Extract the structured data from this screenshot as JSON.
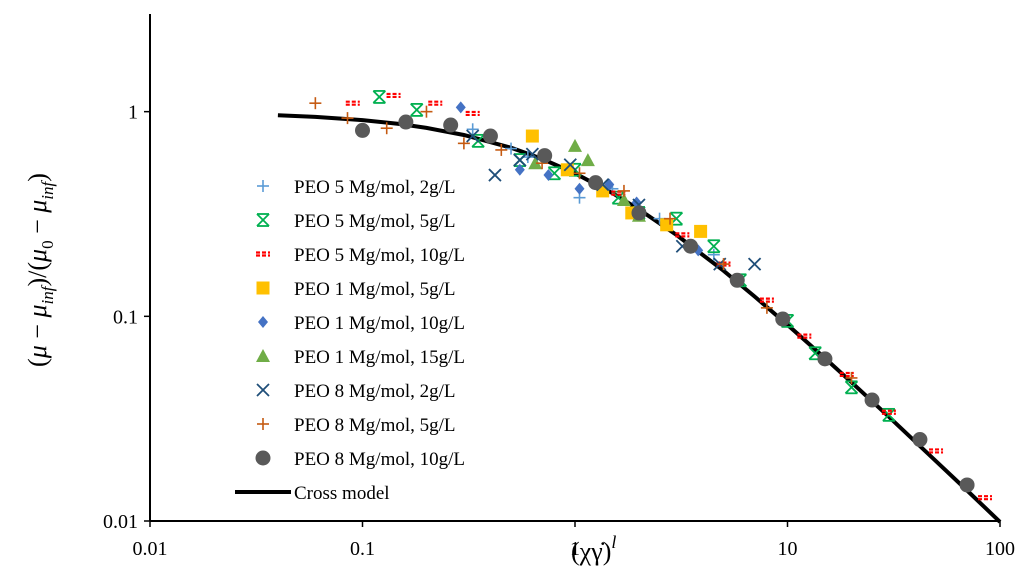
{
  "chart_data": {
    "type": "scatter",
    "title": "",
    "xlabel": "(χγ̇)^l",
    "ylabel": "(μ − μ_inf)/(μ_0 − μ_inf)",
    "x_scale": "log",
    "y_scale": "log",
    "xlim": [
      0.01,
      100
    ],
    "ylim": [
      0.01,
      3
    ],
    "x_ticks": [
      0.01,
      0.1,
      1,
      10,
      100
    ],
    "x_tick_labels": [
      "0.01",
      "0.1",
      "1",
      "10",
      "100"
    ],
    "y_ticks": [
      0.01,
      0.1,
      1
    ],
    "y_tick_labels": [
      "0.01",
      "0.1",
      "1"
    ],
    "grid": false,
    "legend_position": "left",
    "series": [
      {
        "name": "PEO 5 Mg/mol, 2g/L",
        "marker": "plus-icon",
        "color": "#5b9bd5",
        "points": [
          [
            0.33,
            0.82
          ],
          [
            0.5,
            0.66
          ],
          [
            0.6,
            0.6
          ],
          [
            1.05,
            0.38
          ],
          [
            1.5,
            0.42
          ],
          [
            2.5,
            0.3
          ],
          [
            4.5,
            0.2
          ]
        ]
      },
      {
        "name": "PEO 5 Mg/mol, 5g/L",
        "marker": "asterisk-icon",
        "color": "#00b050",
        "points": [
          [
            0.12,
            1.18
          ],
          [
            0.18,
            1.02
          ],
          [
            0.35,
            0.72
          ],
          [
            0.55,
            0.58
          ],
          [
            0.8,
            0.5
          ],
          [
            1.0,
            0.52
          ],
          [
            1.6,
            0.38
          ],
          [
            2.0,
            0.32
          ],
          [
            3.0,
            0.3
          ],
          [
            4.5,
            0.22
          ],
          [
            6.0,
            0.15
          ],
          [
            10.0,
            0.095
          ],
          [
            13.5,
            0.066
          ],
          [
            20.0,
            0.045
          ],
          [
            30.0,
            0.033
          ]
        ]
      },
      {
        "name": "PEO 5 Mg/mol, 10g/L",
        "marker": "dash-icon",
        "color": "#ff0000",
        "points": [
          [
            0.09,
            1.1
          ],
          [
            0.14,
            1.2
          ],
          [
            0.22,
            1.1
          ],
          [
            0.33,
            0.98
          ],
          [
            1.6,
            0.4
          ],
          [
            3.2,
            0.25
          ],
          [
            5.0,
            0.18
          ],
          [
            8.0,
            0.12
          ],
          [
            12.0,
            0.08
          ],
          [
            19.0,
            0.052
          ],
          [
            30.0,
            0.034
          ],
          [
            50.0,
            0.022
          ],
          [
            85.0,
            0.013
          ]
        ]
      },
      {
        "name": "PEO 1 Mg/mol, 5g/L",
        "marker": "square-icon",
        "color": "#ffc000",
        "points": [
          [
            0.63,
            0.76
          ],
          [
            0.92,
            0.52
          ],
          [
            1.35,
            0.41
          ],
          [
            1.85,
            0.32
          ],
          [
            2.7,
            0.28
          ],
          [
            3.9,
            0.26
          ]
        ]
      },
      {
        "name": "PEO 1 Mg/mol, 10g/L",
        "marker": "diamond-icon",
        "color": "#4472c4",
        "points": [
          [
            0.29,
            1.05
          ],
          [
            0.55,
            0.52
          ],
          [
            0.75,
            0.49
          ],
          [
            1.05,
            0.42
          ],
          [
            1.45,
            0.44
          ],
          [
            1.95,
            0.36
          ],
          [
            3.8,
            0.21
          ]
        ]
      },
      {
        "name": "PEO 1 Mg/mol, 15g/L",
        "marker": "triangle-icon",
        "color": "#70ad47",
        "points": [
          [
            0.65,
            0.56
          ],
          [
            1.0,
            0.68
          ],
          [
            1.15,
            0.58
          ],
          [
            1.7,
            0.37
          ],
          [
            2.0,
            0.31
          ]
        ]
      },
      {
        "name": "PEO 8 Mg/mol, 2g/L",
        "marker": "x-icon",
        "color": "#1f4e79",
        "points": [
          [
            0.33,
            0.76
          ],
          [
            0.42,
            0.49
          ],
          [
            0.55,
            0.58
          ],
          [
            0.63,
            0.62
          ],
          [
            0.95,
            0.55
          ],
          [
            1.35,
            0.44
          ],
          [
            2.0,
            0.35
          ],
          [
            3.2,
            0.22
          ],
          [
            4.8,
            0.18
          ],
          [
            7.0,
            0.18
          ]
        ]
      },
      {
        "name": "PEO 8 Mg/mol, 5g/L",
        "marker": "plus-icon",
        "color": "#c55a11",
        "points": [
          [
            0.06,
            1.1
          ],
          [
            0.085,
            0.93
          ],
          [
            0.13,
            0.83
          ],
          [
            0.2,
            1.0
          ],
          [
            0.3,
            0.7
          ],
          [
            0.45,
            0.65
          ],
          [
            0.7,
            0.56
          ],
          [
            1.05,
            0.5
          ],
          [
            1.7,
            0.41
          ],
          [
            2.8,
            0.3
          ],
          [
            5.0,
            0.18
          ],
          [
            8.0,
            0.11
          ],
          [
            20.0,
            0.05
          ]
        ]
      },
      {
        "name": "PEO 8 Mg/mol, 10g/L",
        "marker": "circle-icon",
        "color": "#595959",
        "points": [
          [
            0.1,
            0.81
          ],
          [
            0.16,
            0.89
          ],
          [
            0.26,
            0.86
          ],
          [
            0.4,
            0.76
          ],
          [
            0.72,
            0.61
          ],
          [
            1.25,
            0.45
          ],
          [
            2.0,
            0.32
          ],
          [
            3.5,
            0.22
          ],
          [
            5.8,
            0.15
          ],
          [
            9.5,
            0.097
          ],
          [
            15.0,
            0.062
          ],
          [
            25.0,
            0.039
          ],
          [
            42.0,
            0.025
          ],
          [
            70.0,
            0.015
          ]
        ]
      }
    ],
    "model_line": {
      "name": "Cross model",
      "color": "#000000",
      "points": [
        [
          0.04,
          0.96
        ],
        [
          0.06,
          0.943
        ],
        [
          0.1,
          0.909
        ],
        [
          0.15,
          0.87
        ],
        [
          0.2,
          0.833
        ],
        [
          0.3,
          0.769
        ],
        [
          0.5,
          0.667
        ],
        [
          0.7,
          0.588
        ],
        [
          1.0,
          0.5
        ],
        [
          1.5,
          0.4
        ],
        [
          2.0,
          0.333
        ],
        [
          3.0,
          0.25
        ],
        [
          5.0,
          0.167
        ],
        [
          7.0,
          0.125
        ],
        [
          10.0,
          0.0909
        ],
        [
          15.0,
          0.0625
        ],
        [
          20.0,
          0.0476
        ],
        [
          30.0,
          0.0323
        ],
        [
          50.0,
          0.0196
        ],
        [
          70.0,
          0.0141
        ],
        [
          100.0,
          0.0099
        ]
      ]
    }
  }
}
